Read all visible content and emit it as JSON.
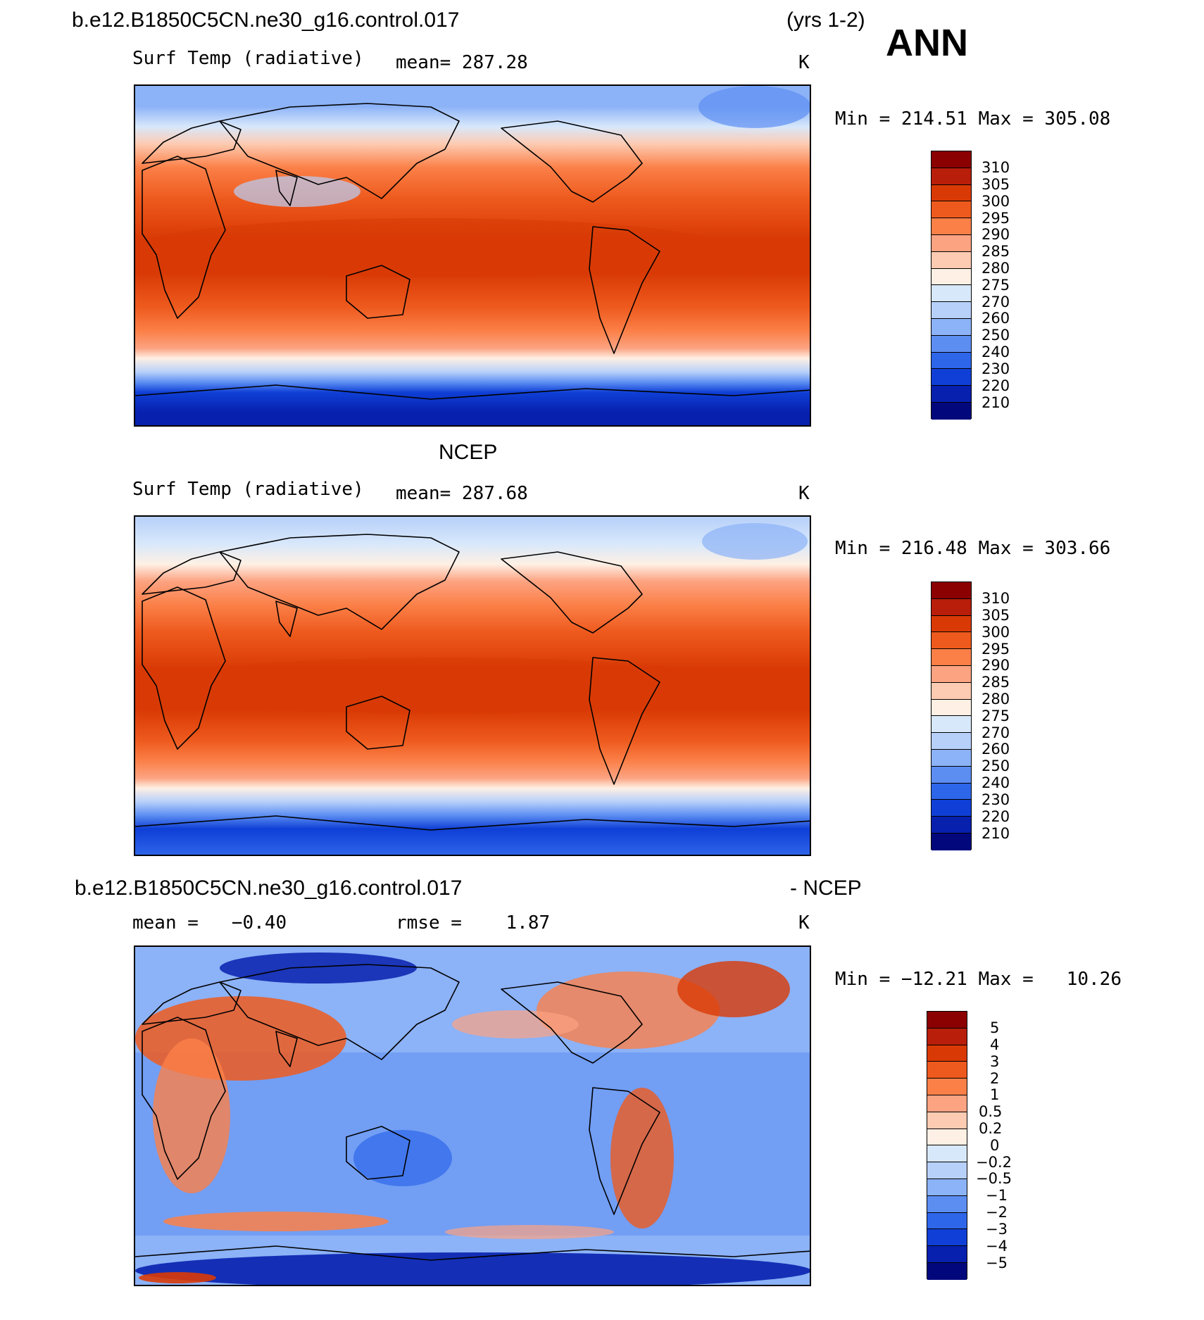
{
  "season": "ANN",
  "panels": [
    {
      "id": "model",
      "title_left": "b.e12.B1850C5CN.ne30_g16.control.017",
      "title_right": "(yrs 1-2)",
      "sub_left": "Surf Temp (radiative)",
      "sub_mid": "mean= 287.28",
      "units": "K",
      "minmax": "Min = 214.51 Max = 305.08",
      "scale_labels": [
        "310",
        "305",
        "300",
        "295",
        "290",
        "285",
        "280",
        "275",
        "270",
        "260",
        "250",
        "240",
        "230",
        "220",
        "210"
      ],
      "scale_colors": [
        "#8b0000",
        "#b81e0a",
        "#d93a05",
        "#ee5a1e",
        "#fb8048",
        "#fca382",
        "#fdcbb2",
        "#fef0e4",
        "#d8e8fb",
        "#b7d0fa",
        "#8cb2f7",
        "#5c8ef2",
        "#2e66ea",
        "#0f3fd6",
        "#0720ae",
        "#02087c"
      ],
      "mean_value": 287.28
    },
    {
      "id": "obs",
      "title_center": "NCEP",
      "sub_left": "Surf Temp (radiative)",
      "sub_mid": "mean= 287.68",
      "units": "K",
      "minmax": "Min = 216.48 Max = 303.66",
      "scale_labels": [
        "310",
        "305",
        "300",
        "295",
        "290",
        "285",
        "280",
        "275",
        "270",
        "260",
        "250",
        "240",
        "230",
        "220",
        "210"
      ],
      "scale_colors": [
        "#8b0000",
        "#b81e0a",
        "#d93a05",
        "#ee5a1e",
        "#fb8048",
        "#fca382",
        "#fdcbb2",
        "#fef0e4",
        "#d8e8fb",
        "#b7d0fa",
        "#8cb2f7",
        "#5c8ef2",
        "#2e66ea",
        "#0f3fd6",
        "#0720ae",
        "#02087c"
      ],
      "mean_value": 287.68
    },
    {
      "id": "diff",
      "title_left": "b.e12.B1850C5CN.ne30_g16.control.017",
      "title_right": "- NCEP",
      "sub_left": "mean =   −0.40",
      "sub_mid": "rmse =    1.87",
      "units": "K",
      "minmax": "Min = −12.21 Max =   10.26",
      "scale_labels": [
        "5",
        "4",
        "3",
        "2",
        "1",
        "0.5",
        "0.2",
        "0",
        "−0.2",
        "−0.5",
        "−1",
        "−2",
        "−3",
        "−4",
        "−5"
      ],
      "scale_colors": [
        "#8b0000",
        "#b81e0a",
        "#d93a05",
        "#ee5a1e",
        "#fb8048",
        "#fca382",
        "#fdcbb2",
        "#fef0e4",
        "#d8e8fb",
        "#b7d0fa",
        "#8cb2f7",
        "#5c8ef2",
        "#2e66ea",
        "#0f3fd6",
        "#0720ae",
        "#02087c"
      ],
      "mean_value": -0.4
    }
  ]
}
